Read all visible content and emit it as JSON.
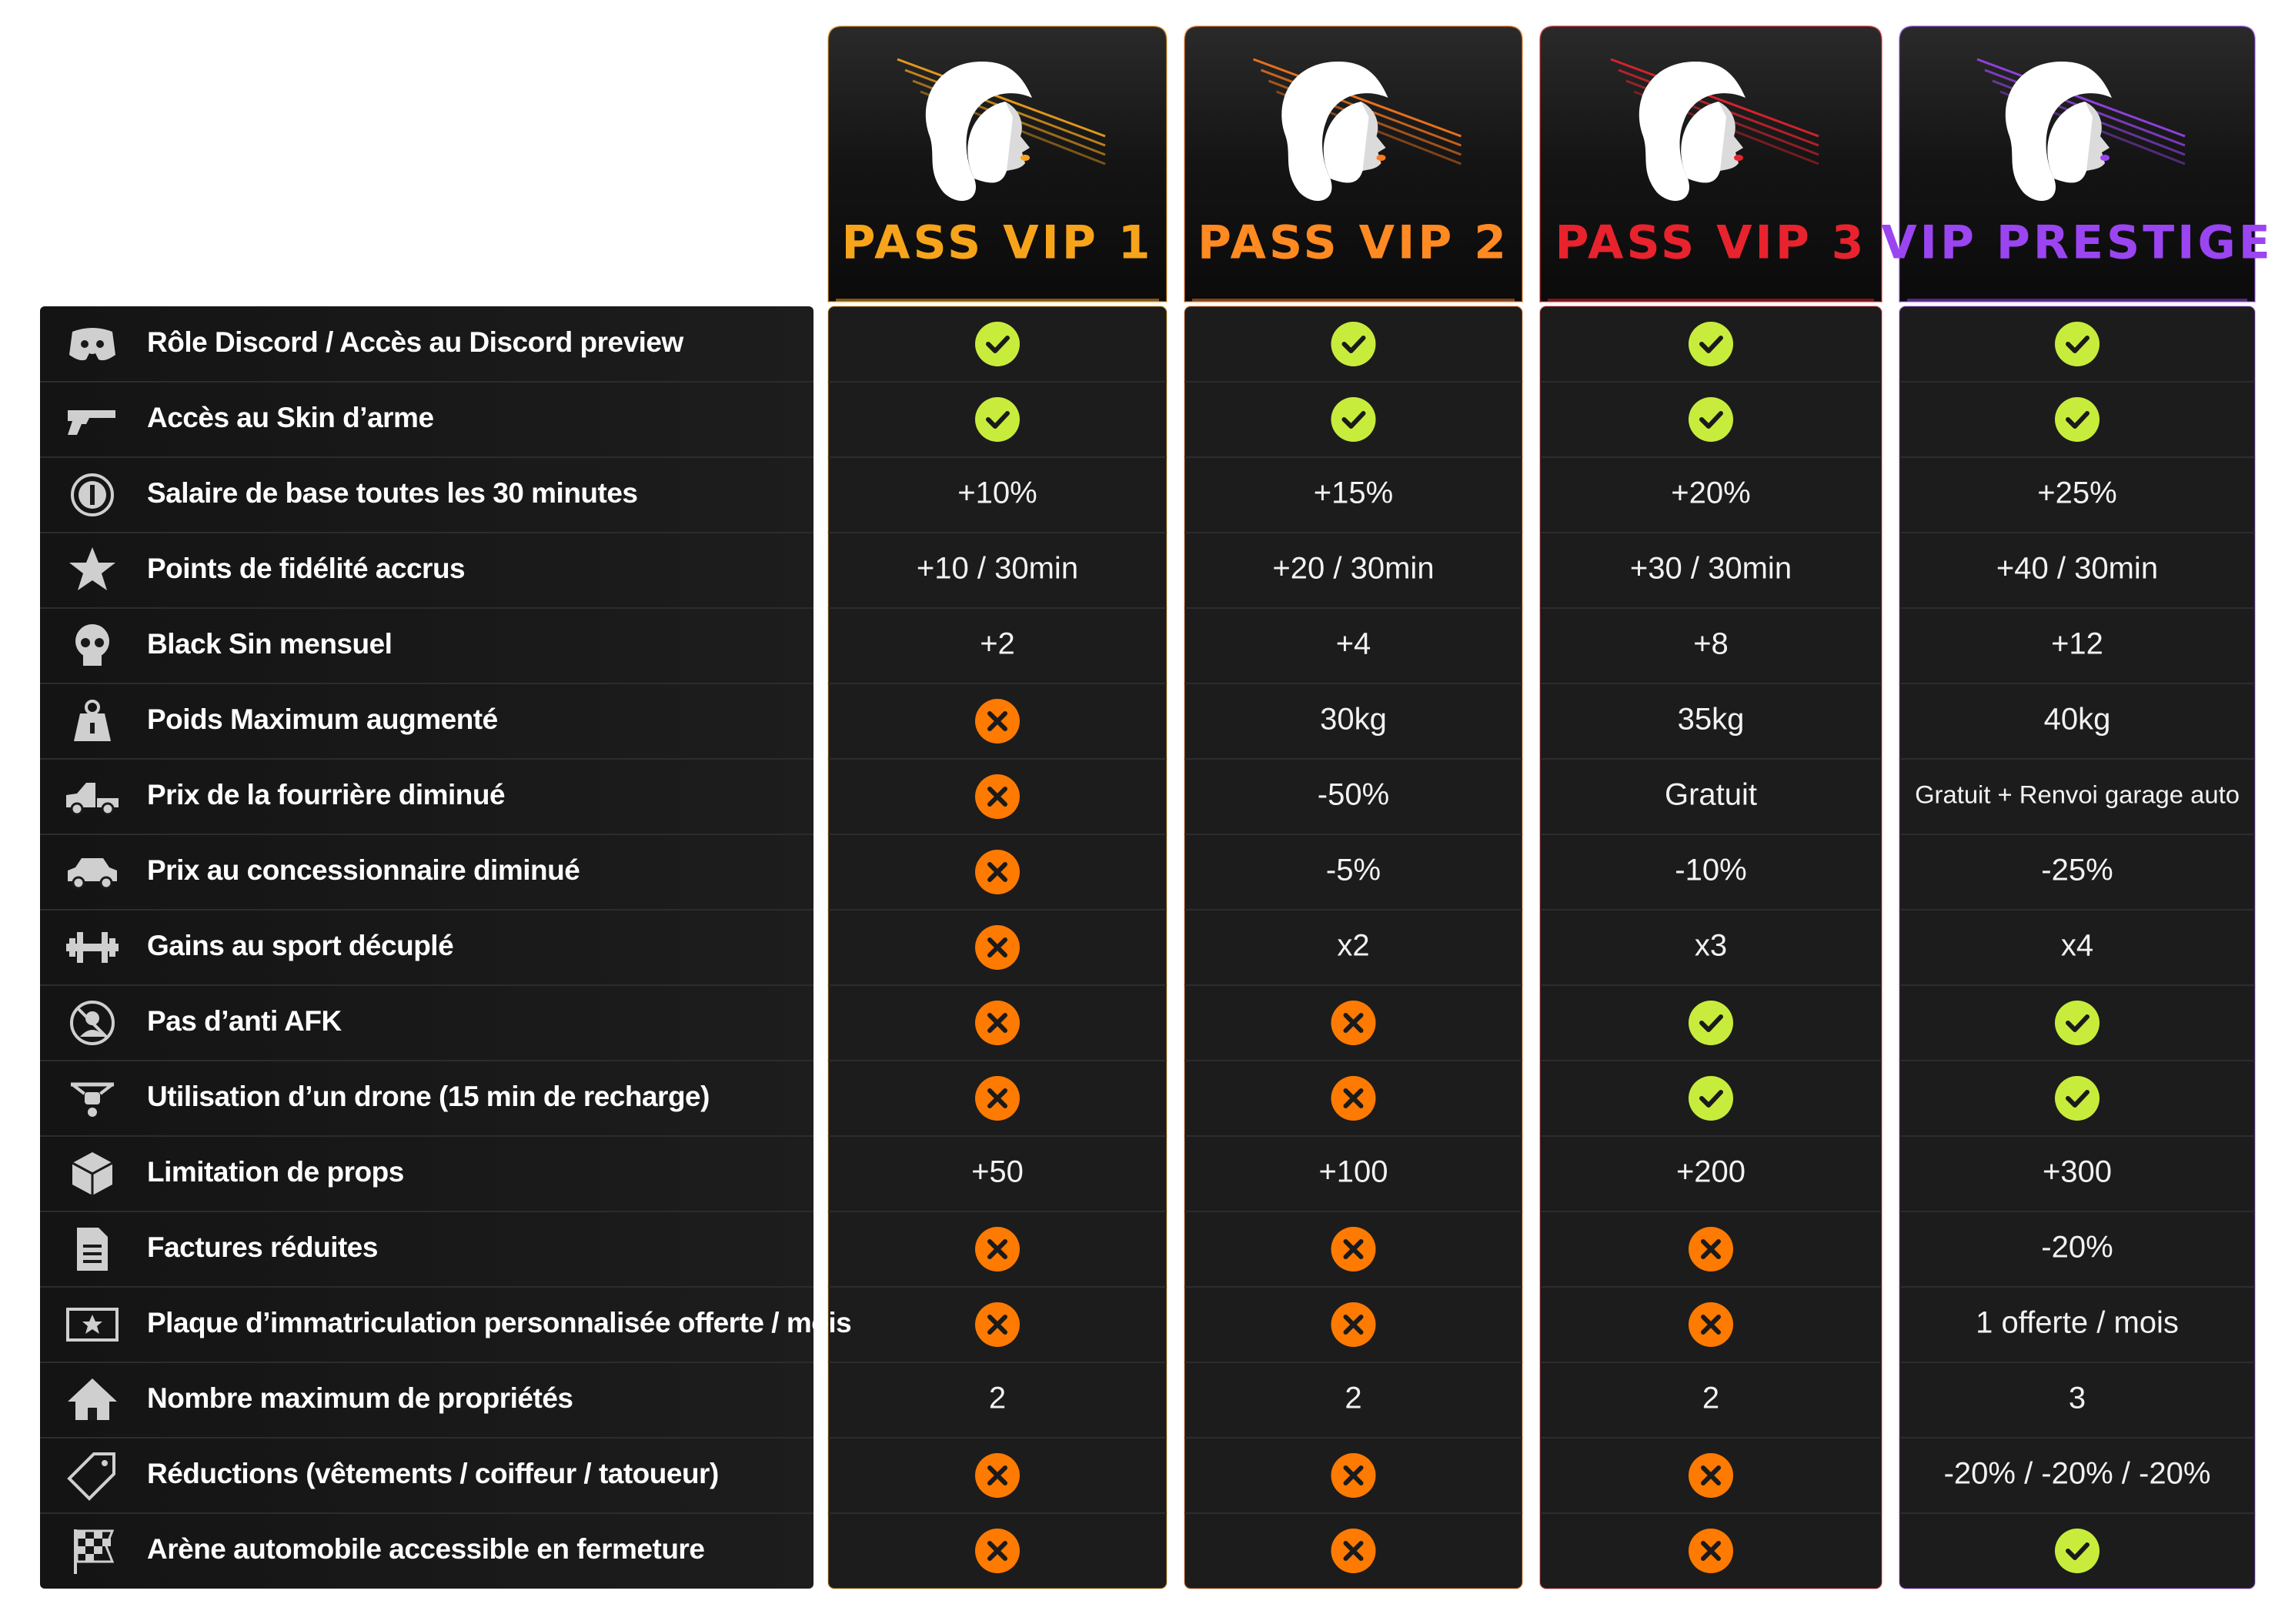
{
  "tiers": [
    "PASS VIP 1",
    "PASS VIP 2",
    "PASS VIP 3",
    "VIP PRESTIGE"
  ],
  "features": [
    {
      "label": "Rôle Discord / Accès au Discord preview",
      "values": [
        true,
        true,
        true,
        true
      ]
    },
    {
      "label": "Accès au Skin d’arme",
      "values": [
        true,
        true,
        true,
        true
      ]
    },
    {
      "label": "Salaire de base toutes les 30 minutes",
      "values": [
        "+10%",
        "+15%",
        "+20%",
        "+25%"
      ]
    },
    {
      "label": "Points de fidélité accrus",
      "values": [
        "+10 / 30min",
        "+20 / 30min",
        "+30 / 30min",
        "+40 / 30min"
      ]
    },
    {
      "label": "Black Sin mensuel",
      "values": [
        "+2",
        "+4",
        "+8",
        "+12"
      ]
    },
    {
      "label": "Poids Maximum augmenté",
      "values": [
        false,
        "30kg",
        "35kg",
        "40kg"
      ]
    },
    {
      "label": "Prix de la fourrière diminué",
      "values": [
        false,
        "-50%",
        "Gratuit",
        "Gratuit + Renvoi garage auto"
      ]
    },
    {
      "label": "Prix au concessionnaire diminué",
      "values": [
        false,
        "-5%",
        "-10%",
        "-25%"
      ]
    },
    {
      "label": "Gains au sport décuplé",
      "values": [
        false,
        "x2",
        "x3",
        "x4"
      ]
    },
    {
      "label": "Pas d’anti AFK",
      "values": [
        false,
        false,
        true,
        true
      ]
    },
    {
      "label": "Utilisation d’un drone (15 min de recharge)",
      "values": [
        false,
        false,
        true,
        true
      ]
    },
    {
      "label": "Limitation de props",
      "values": [
        "+50",
        "+100",
        "+200",
        "+300"
      ]
    },
    {
      "label": "Factures réduites",
      "values": [
        false,
        false,
        false,
        "-20%"
      ]
    },
    {
      "label": "Plaque d’immatriculation personnalisée offerte / mois",
      "values": [
        false,
        false,
        false,
        "1 offerte / mois"
      ]
    },
    {
      "label": "Nombre maximum de propriétés",
      "values": [
        "2",
        "2",
        "2",
        "3"
      ]
    },
    {
      "label": "Réductions (vêtements / coiffeur / tatoueur)",
      "values": [
        false,
        false,
        false,
        "-20% / -20% / -20%"
      ]
    },
    {
      "label": "Arène automobile accessible en fermeture",
      "values": [
        false,
        false,
        false,
        true
      ]
    }
  ]
}
